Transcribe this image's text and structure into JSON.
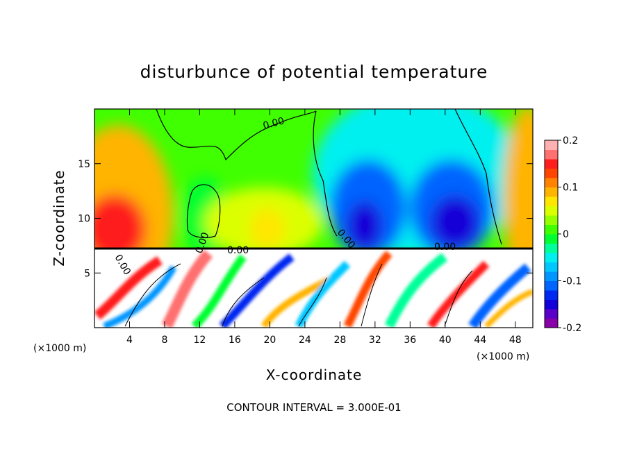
{
  "chart_data": {
    "type": "heatmap",
    "title": "disturbunce of potential temperature",
    "xlabel": "X-coordinate",
    "ylabel": "Z-coordinate",
    "x_unit_label": "(×1000 m)",
    "x_unit_label_right": "(×1000 m)",
    "xlim": [
      0,
      50
    ],
    "ylim": [
      0,
      20
    ],
    "x_ticks": [
      4,
      8,
      12,
      16,
      20,
      24,
      28,
      32,
      36,
      40,
      44,
      48
    ],
    "y_ticks": [
      5,
      10,
      15
    ],
    "x_tick_labels": [
      "4",
      "8",
      "12",
      "16",
      "20",
      "24",
      "28",
      "32",
      "36",
      "40",
      "44",
      "48"
    ],
    "y_tick_labels": [
      "5",
      "10",
      "15"
    ],
    "colorbar": {
      "range": [
        -0.2,
        0.2
      ],
      "tick_values": [
        -0.2,
        -0.1,
        0,
        0.1,
        0.2
      ],
      "tick_labels": [
        "-0.2",
        "-0.1",
        "0",
        "0.1",
        "0.2"
      ],
      "levels": 20,
      "colors": [
        "#8a00a8",
        "#5a00c8",
        "#1400d8",
        "#0028f0",
        "#0064ff",
        "#0096ff",
        "#00c8ff",
        "#00f0f0",
        "#00ff9a",
        "#00ff30",
        "#40ff00",
        "#96ff00",
        "#dcff00",
        "#ffe600",
        "#ffb400",
        "#ff8200",
        "#ff4600",
        "#ff1e1e",
        "#ff7070",
        "#ffb0b0"
      ]
    },
    "contour_interval_label": "CONTOUR INTERVAL = 3.000E-01",
    "contour_labels": [
      "0.00",
      "0.00",
      "0.00",
      "0.00",
      "0.00",
      "0.00"
    ],
    "boundary_level_z": 7.2,
    "upper_regions": [
      {
        "x": [
          0,
          8
        ],
        "z": [
          7.5,
          20
        ],
        "value": 0.09
      },
      {
        "x": [
          1,
          5
        ],
        "z": [
          7.5,
          12
        ],
        "value": 0.17
      },
      {
        "x": [
          8,
          28
        ],
        "z": [
          11,
          20
        ],
        "value": 0.0
      },
      {
        "x": [
          10,
          14
        ],
        "z": [
          9,
          14
        ],
        "value": 0.02
      },
      {
        "x": [
          14,
          26
        ],
        "z": [
          7.5,
          12
        ],
        "value": 0.07
      },
      {
        "x": [
          28,
          48
        ],
        "z": [
          13,
          20
        ],
        "value": -0.03
      },
      {
        "x": [
          28,
          35
        ],
        "z": [
          7.5,
          16
        ],
        "value": -0.12
      },
      {
        "x": [
          36,
          46
        ],
        "z": [
          7.5,
          16
        ],
        "value": -0.16
      },
      {
        "x": [
          46,
          50
        ],
        "z": [
          7.5,
          20
        ],
        "value": 0.06
      }
    ],
    "lower_layer": {
      "z": [
        0,
        7.2
      ],
      "value_range": [
        -0.2,
        0.3
      ]
    }
  }
}
